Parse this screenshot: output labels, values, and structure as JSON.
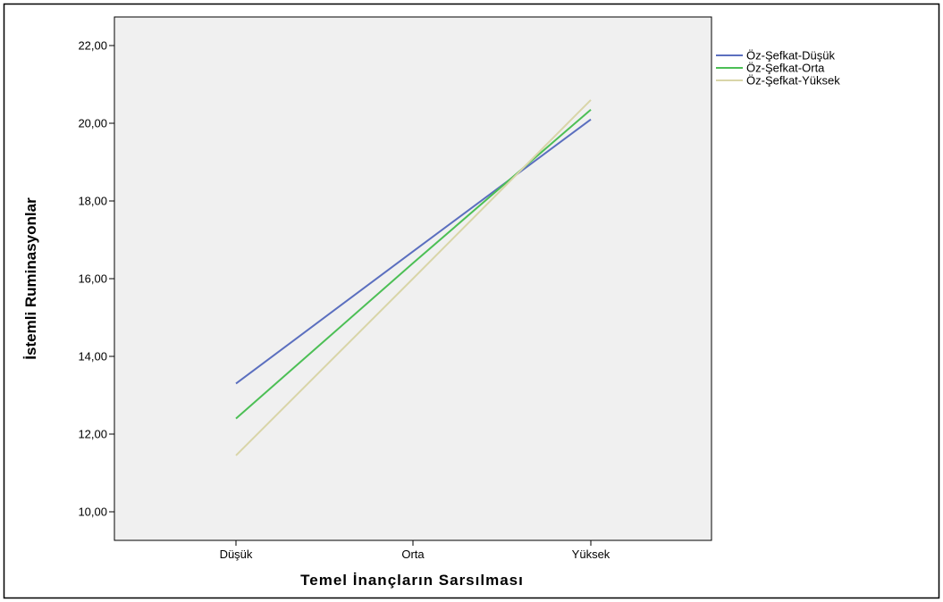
{
  "chart_data": {
    "type": "line",
    "xlabel": "Temel İnançların Sarsılması",
    "ylabel": "İstemli Ruminasyonlar",
    "categories": [
      "Düşük",
      "Orta",
      "Yüksek"
    ],
    "ylim": [
      9.6,
      23.0
    ],
    "yticks": [
      10,
      12,
      14,
      16,
      18,
      20,
      22
    ],
    "ytick_labels": [
      "10,00",
      "12,00",
      "14,00",
      "16,00",
      "18,00",
      "20,00",
      "22,00"
    ],
    "grid": false,
    "legend_position": "right",
    "series": [
      {
        "name": "Öz-Şefkat-Düşük",
        "color": "#5b6fbf",
        "values": [
          13.3,
          16.7,
          20.1
        ]
      },
      {
        "name": "Öz-Şefkat-Orta",
        "color": "#4cbf55",
        "values": [
          12.4,
          16.4,
          20.35
        ]
      },
      {
        "name": "Öz-Şefkat-Yüksek",
        "color": "#d9d5a8",
        "values": [
          11.45,
          16.0,
          20.6
        ]
      }
    ]
  },
  "colors": {
    "plot_background": "#f0f0f0",
    "axis": "#000000",
    "frame": "#000000"
  }
}
